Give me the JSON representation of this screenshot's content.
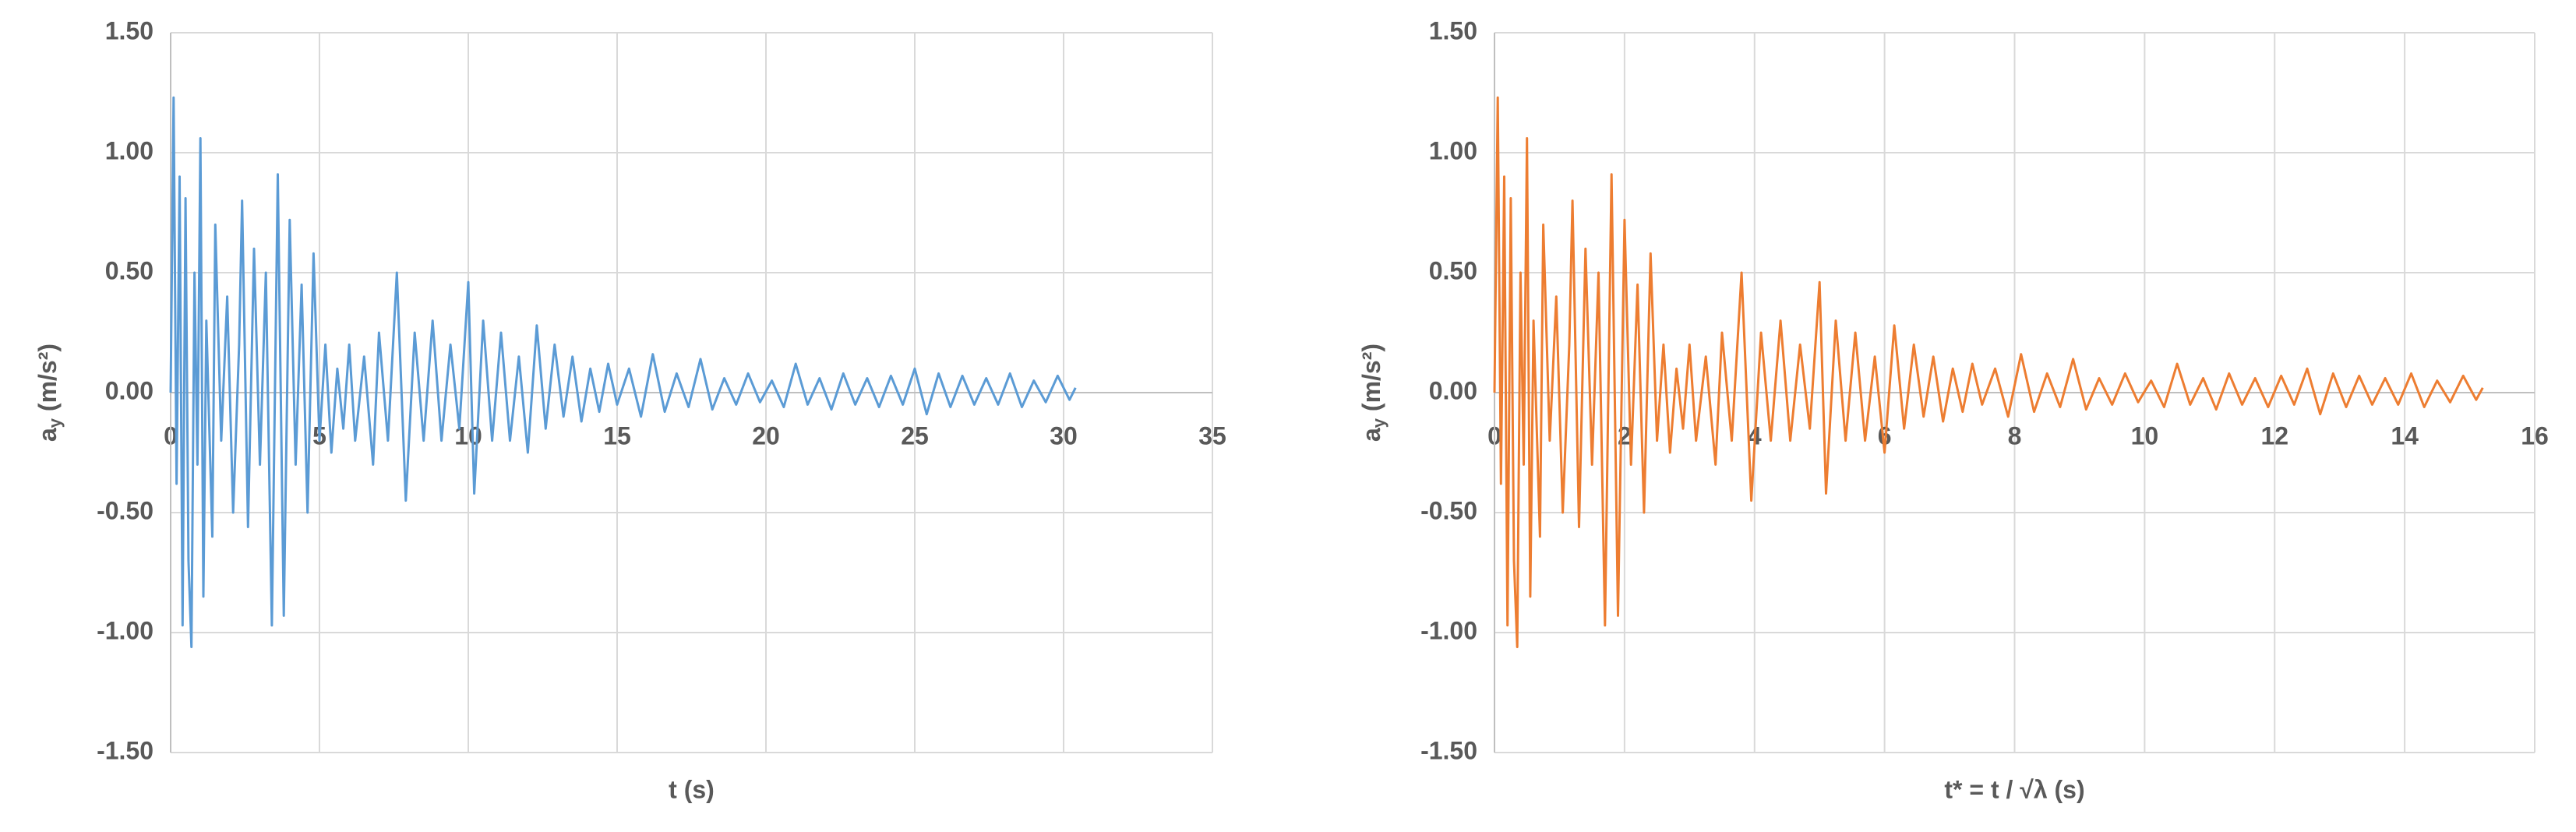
{
  "chart_data": [
    {
      "type": "line",
      "x_label": "t (s)",
      "y_label": {
        "base": "a",
        "subscript": "y",
        "unit": " (m/s²)"
      },
      "x": [
        0,
        0.1,
        0.2,
        0.3,
        0.4,
        0.5,
        0.6,
        0.7,
        0.8,
        0.9,
        1.0,
        1.1,
        1.2,
        1.4,
        1.5,
        1.7,
        1.9,
        2.1,
        2.3,
        2.4,
        2.6,
        2.8,
        3.0,
        3.2,
        3.4,
        3.6,
        3.8,
        4.0,
        4.2,
        4.4,
        4.6,
        4.8,
        5.0,
        5.2,
        5.4,
        5.6,
        5.8,
        6.0,
        6.2,
        6.5,
        6.8,
        7.0,
        7.3,
        7.6,
        7.9,
        8.2,
        8.5,
        8.8,
        9.1,
        9.4,
        9.7,
        10.0,
        10.2,
        10.5,
        10.8,
        11.1,
        11.4,
        11.7,
        12.0,
        12.3,
        12.6,
        12.9,
        13.2,
        13.5,
        13.8,
        14.1,
        14.4,
        14.7,
        15.0,
        15.4,
        15.8,
        16.2,
        16.6,
        17.0,
        17.4,
        17.8,
        18.2,
        18.6,
        19.0,
        19.4,
        19.8,
        20.2,
        20.6,
        21.0,
        21.4,
        21.8,
        22.2,
        22.6,
        23.0,
        23.4,
        23.8,
        24.2,
        24.6,
        25.0,
        25.4,
        25.8,
        26.2,
        26.6,
        27.0,
        27.4,
        27.8,
        28.2,
        28.6,
        29.0,
        29.4,
        29.8,
        30.2,
        30.4
      ],
      "series": [
        {
          "color": "#5b9bd5",
          "values": [
            0,
            1.23,
            -0.38,
            0.9,
            -0.97,
            0.81,
            -0.7,
            -1.06,
            0.5,
            -0.3,
            1.06,
            -0.85,
            0.3,
            -0.6,
            0.7,
            -0.2,
            0.4,
            -0.5,
            0.2,
            0.8,
            -0.56,
            0.6,
            -0.3,
            0.5,
            -0.97,
            0.91,
            -0.93,
            0.72,
            -0.3,
            0.45,
            -0.5,
            0.58,
            -0.2,
            0.2,
            -0.25,
            0.1,
            -0.15,
            0.2,
            -0.2,
            0.15,
            -0.3,
            0.25,
            -0.2,
            0.5,
            -0.45,
            0.25,
            -0.2,
            0.3,
            -0.2,
            0.2,
            -0.15,
            0.46,
            -0.42,
            0.3,
            -0.2,
            0.25,
            -0.2,
            0.15,
            -0.25,
            0.28,
            -0.15,
            0.2,
            -0.1,
            0.15,
            -0.12,
            0.1,
            -0.08,
            0.12,
            -0.05,
            0.1,
            -0.1,
            0.16,
            -0.08,
            0.08,
            -0.06,
            0.14,
            -0.07,
            0.06,
            -0.05,
            0.08,
            -0.04,
            0.05,
            -0.06,
            0.12,
            -0.05,
            0.06,
            -0.07,
            0.08,
            -0.05,
            0.06,
            -0.06,
            0.07,
            -0.05,
            0.1,
            -0.09,
            0.08,
            -0.06,
            0.07,
            -0.05,
            0.06,
            -0.05,
            0.08,
            -0.06,
            0.05,
            -0.04,
            0.07,
            -0.03,
            0.02
          ]
        }
      ],
      "xlim": [
        0,
        35
      ],
      "xticks": [
        0,
        5,
        10,
        15,
        20,
        25,
        30,
        35
      ],
      "ylim": [
        -1.5,
        1.5
      ],
      "yticks": [
        {
          "value": -1.5,
          "label": "-1.50"
        },
        {
          "value": -1,
          "label": "-1.00"
        },
        {
          "value": -0.5,
          "label": "-0.50"
        },
        {
          "value": 0,
          "label": "0.00"
        },
        {
          "value": 0.5,
          "label": "0.50"
        },
        {
          "value": 1,
          "label": "1.00"
        },
        {
          "value": 1.5,
          "label": "1.50"
        }
      ],
      "grid": true
    },
    {
      "type": "line",
      "x_label": "t* = t / √λ (s)",
      "y_label": {
        "base": "a",
        "subscript": "y",
        "unit": " (m/s²)"
      },
      "x": [
        0,
        0.05,
        0.1,
        0.15,
        0.2,
        0.25,
        0.3,
        0.35,
        0.4,
        0.45,
        0.5,
        0.55,
        0.6,
        0.7,
        0.75,
        0.85,
        0.95,
        1.05,
        1.15,
        1.2,
        1.3,
        1.4,
        1.5,
        1.6,
        1.7,
        1.8,
        1.9,
        2.0,
        2.1,
        2.2,
        2.3,
        2.4,
        2.5,
        2.6,
        2.7,
        2.8,
        2.9,
        3.0,
        3.1,
        3.25,
        3.4,
        3.5,
        3.65,
        3.8,
        3.95,
        4.1,
        4.25,
        4.4,
        4.55,
        4.7,
        4.85,
        5.0,
        5.1,
        5.25,
        5.4,
        5.55,
        5.7,
        5.85,
        6.0,
        6.15,
        6.3,
        6.45,
        6.6,
        6.75,
        6.9,
        7.05,
        7.2,
        7.35,
        7.5,
        7.7,
        7.9,
        8.1,
        8.3,
        8.5,
        8.7,
        8.9,
        9.1,
        9.3,
        9.5,
        9.7,
        9.9,
        10.1,
        10.3,
        10.5,
        10.7,
        10.9,
        11.1,
        11.3,
        11.5,
        11.7,
        11.9,
        12.1,
        12.3,
        12.5,
        12.7,
        12.9,
        13.1,
        13.3,
        13.5,
        13.7,
        13.9,
        14.1,
        14.3,
        14.5,
        14.7,
        14.9,
        15.1,
        15.2
      ],
      "series": [
        {
          "color": "#ed7d31",
          "values": [
            0,
            1.23,
            -0.38,
            0.9,
            -0.97,
            0.81,
            -0.7,
            -1.06,
            0.5,
            -0.3,
            1.06,
            -0.85,
            0.3,
            -0.6,
            0.7,
            -0.2,
            0.4,
            -0.5,
            0.2,
            0.8,
            -0.56,
            0.6,
            -0.3,
            0.5,
            -0.97,
            0.91,
            -0.93,
            0.72,
            -0.3,
            0.45,
            -0.5,
            0.58,
            -0.2,
            0.2,
            -0.25,
            0.1,
            -0.15,
            0.2,
            -0.2,
            0.15,
            -0.3,
            0.25,
            -0.2,
            0.5,
            -0.45,
            0.25,
            -0.2,
            0.3,
            -0.2,
            0.2,
            -0.15,
            0.46,
            -0.42,
            0.3,
            -0.2,
            0.25,
            -0.2,
            0.15,
            -0.25,
            0.28,
            -0.15,
            0.2,
            -0.1,
            0.15,
            -0.12,
            0.1,
            -0.08,
            0.12,
            -0.05,
            0.1,
            -0.1,
            0.16,
            -0.08,
            0.08,
            -0.06,
            0.14,
            -0.07,
            0.06,
            -0.05,
            0.08,
            -0.04,
            0.05,
            -0.06,
            0.12,
            -0.05,
            0.06,
            -0.07,
            0.08,
            -0.05,
            0.06,
            -0.06,
            0.07,
            -0.05,
            0.1,
            -0.09,
            0.08,
            -0.06,
            0.07,
            -0.05,
            0.06,
            -0.05,
            0.08,
            -0.06,
            0.05,
            -0.04,
            0.07,
            -0.03,
            0.02
          ]
        }
      ],
      "xlim": [
        0,
        16
      ],
      "xticks": [
        0,
        2,
        4,
        6,
        8,
        10,
        12,
        14,
        16
      ],
      "ylim": [
        -1.5,
        1.5
      ],
      "yticks": [
        {
          "value": -1.5,
          "label": "-1.50"
        },
        {
          "value": -1,
          "label": "-1.00"
        },
        {
          "value": -0.5,
          "label": "-0.50"
        },
        {
          "value": 0,
          "label": "0.00"
        },
        {
          "value": 0.5,
          "label": "0.50"
        },
        {
          "value": 1,
          "label": "1.00"
        },
        {
          "value": 1.5,
          "label": "1.50"
        }
      ],
      "grid": true
    }
  ]
}
